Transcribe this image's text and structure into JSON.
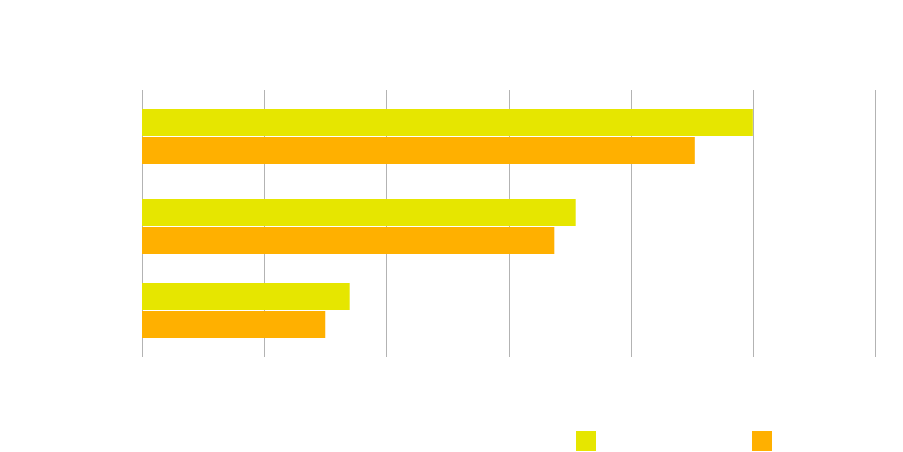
{
  "chart_data": {
    "type": "bar",
    "orientation": "horizontal",
    "title": "",
    "xlabel": "",
    "ylabel": "",
    "categories": [
      "",
      "",
      ""
    ],
    "series": [
      {
        "values": [
          100,
          71,
          34
        ],
        "color": "#e6e600"
      },
      {
        "values": [
          90.5,
          67.5,
          30
        ],
        "color": "#ffb000"
      }
    ],
    "xlim": [
      0,
      120
    ],
    "x_gridlines": [
      0,
      20,
      40,
      60,
      80,
      100,
      120
    ],
    "grid": true,
    "legend": "bottom-right",
    "tick_labels_visible": false
  }
}
